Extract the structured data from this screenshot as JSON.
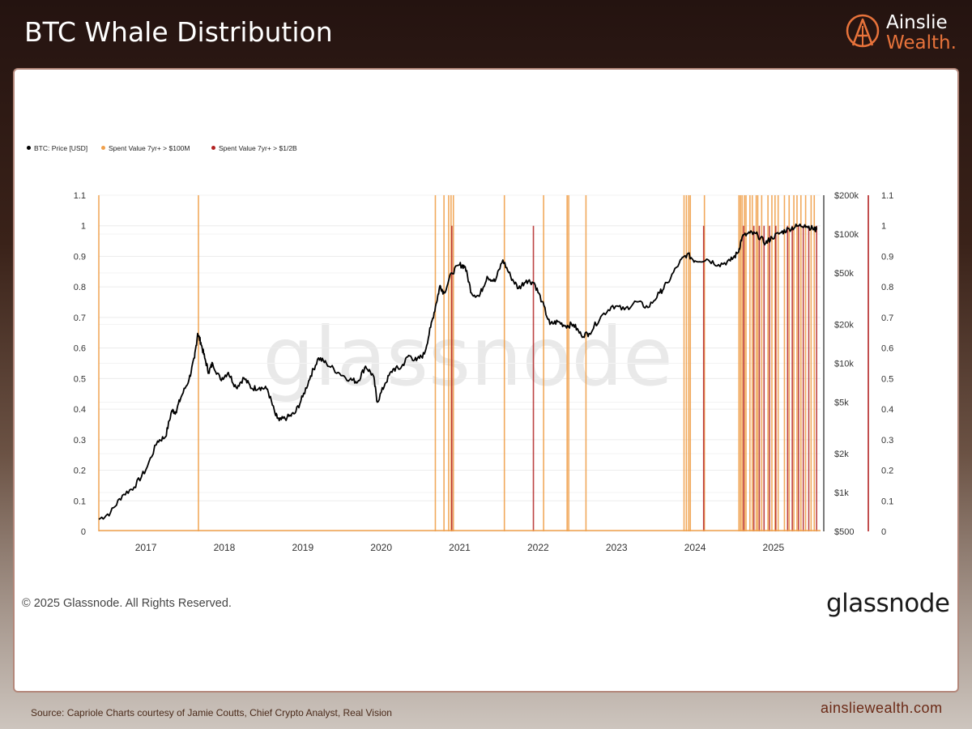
{
  "header": {
    "title": "BTC Whale Distribution",
    "logo_line1": "Ainslie",
    "logo_line2": "Wealth."
  },
  "footer": {
    "copyright": "© 2025 Glassnode. All Rights Reserved.",
    "provider_logo": "glassnode",
    "watermark": "glassnode",
    "source": "Source: Capriole Charts courtesy of Jamie Coutts, Chief Crypto Analyst, Real Vision",
    "website": "ainsliewealth.com"
  },
  "colors": {
    "price": "#000000",
    "spent_100m": "#f0a04b",
    "spent_half_b": "#b22222",
    "brand_orange": "#e8733b"
  },
  "chart_data": {
    "type": "line",
    "title": "BTC Whale Distribution",
    "legend": [
      {
        "label": "BTC: Price [USD]",
        "color": "#000000"
      },
      {
        "label": "Spent Value 7yr+ > $100M",
        "color": "#f0a04b"
      },
      {
        "label": "Spent Value 7yr+ > $1/2B",
        "color": "#b22222"
      }
    ],
    "x_ticks": [
      "2017",
      "2018",
      "2019",
      "2020",
      "2021",
      "2022",
      "2023",
      "2024",
      "2025"
    ],
    "x_range": [
      2016.7,
      2025.9
    ],
    "left_axis": {
      "ticks": [
        "1.1",
        "1",
        "0.9",
        "0.8",
        "0.7",
        "0.6",
        "0.5",
        "0.4",
        "0.3",
        "0.2",
        "0.1",
        "0"
      ],
      "range": [
        0,
        1.1
      ]
    },
    "right_signal_axis": {
      "ticks": [
        "1.1",
        "1",
        "0.9",
        "0.8",
        "0.7",
        "0.6",
        "0.5",
        "0.4",
        "0.3",
        "0.2",
        "0.1",
        "0"
      ],
      "range": [
        0,
        1.1
      ]
    },
    "price_axis": {
      "scale": "log",
      "ticks": [
        {
          "label": "$200k",
          "value": 200000
        },
        {
          "label": "$100k",
          "value": 100000
        },
        {
          "label": "$50k",
          "value": 50000
        },
        {
          "label": "$20k",
          "value": 20000
        },
        {
          "label": "$10k",
          "value": 10000
        },
        {
          "label": "$5k",
          "value": 5000
        },
        {
          "label": "$2k",
          "value": 2000
        },
        {
          "label": "$1k",
          "value": 1000
        },
        {
          "label": "$500",
          "value": 500
        }
      ],
      "range": [
        500,
        200000
      ]
    },
    "price_series": {
      "name": "BTC: Price [USD]",
      "x": [
        2016.7,
        2016.85,
        2017.0,
        2017.15,
        2017.3,
        2017.45,
        2017.55,
        2017.63,
        2017.68,
        2017.75,
        2017.85,
        2017.92,
        2017.96,
        2018.0,
        2018.05,
        2018.1,
        2018.15,
        2018.25,
        2018.35,
        2018.45,
        2018.55,
        2018.65,
        2018.75,
        2018.85,
        2018.95,
        2019.0,
        2019.1,
        2019.2,
        2019.3,
        2019.4,
        2019.5,
        2019.6,
        2019.75,
        2019.9,
        2020.0,
        2020.1,
        2020.2,
        2020.25,
        2020.35,
        2020.45,
        2020.55,
        2020.65,
        2020.75,
        2020.85,
        2020.93,
        2021.0,
        2021.05,
        2021.1,
        2021.2,
        2021.3,
        2021.37,
        2021.45,
        2021.55,
        2021.65,
        2021.75,
        2021.85,
        2021.95,
        2022.05,
        2022.15,
        2022.25,
        2022.35,
        2022.45,
        2022.55,
        2022.65,
        2022.75,
        2022.85,
        2022.95,
        2023.1,
        2023.25,
        2023.4,
        2023.55,
        2023.7,
        2023.85,
        2023.95,
        2024.1,
        2024.2,
        2024.3,
        2024.45,
        2024.6,
        2024.75,
        2024.85,
        2024.9,
        2025.0,
        2025.1,
        2025.2,
        2025.28,
        2025.4,
        2025.5,
        2025.6,
        2025.7,
        2025.8,
        2025.85
      ],
      "y": [
        620,
        700,
        950,
        1100,
        1500,
        2500,
        2700,
        4300,
        4200,
        5500,
        7500,
        11000,
        17000,
        14500,
        11000,
        8500,
        10000,
        7500,
        8500,
        6500,
        7700,
        6400,
        6500,
        6300,
        4000,
        3600,
        3800,
        4100,
        5500,
        8000,
        11000,
        10000,
        8500,
        7500,
        7200,
        9500,
        8000,
        5000,
        7000,
        9000,
        9200,
        11500,
        10500,
        11800,
        19000,
        29000,
        40000,
        35000,
        50000,
        58000,
        56000,
        35000,
        33000,
        47000,
        43000,
        63000,
        47000,
        38000,
        44000,
        42000,
        30000,
        20000,
        21000,
        19500,
        20000,
        16500,
        17000,
        23000,
        28000,
        26000,
        30000,
        27000,
        35000,
        42000,
        60000,
        70000,
        62000,
        64000,
        58000,
        62000,
        72000,
        95000,
        102000,
        98000,
        85000,
        94000,
        103000,
        110000,
        115000,
        118000,
        110000,
        108000
      ]
    },
    "signal_lines_100m": [
      2016.7,
      2017.97,
      2020.99,
      2021.1,
      2021.16,
      2021.19,
      2021.22,
      2021.87,
      2022.37,
      2022.67,
      2022.69,
      2022.91,
      2024.16,
      2024.19,
      2024.22,
      2024.24,
      2024.42,
      2024.86,
      2024.88,
      2024.9,
      2024.93,
      2024.95,
      2025.0,
      2025.03,
      2025.08,
      2025.1,
      2025.15,
      2025.23,
      2025.28,
      2025.32,
      2025.36,
      2025.44,
      2025.5,
      2025.56,
      2025.6,
      2025.65,
      2025.71,
      2025.78,
      2025.82
    ],
    "signal_lines_half_b": [
      2021.2,
      2022.24,
      2024.41,
      2024.92,
      2025.05,
      2025.12,
      2025.18,
      2025.25,
      2025.33,
      2025.48,
      2025.54,
      2025.62,
      2025.68,
      2025.75,
      2025.85
    ]
  }
}
